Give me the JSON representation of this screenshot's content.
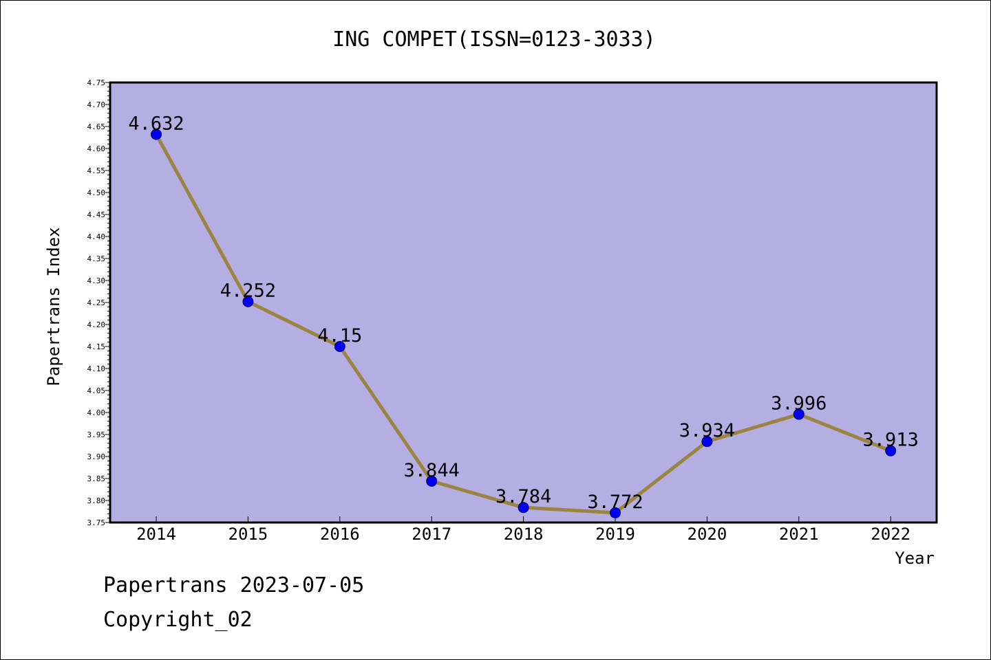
{
  "chart_data": {
    "type": "line",
    "title": "ING COMPET(ISSN=0123-3033)",
    "xlabel": "Year",
    "ylabel": "Papertrans Index",
    "categories": [
      "2014",
      "2015",
      "2016",
      "2017",
      "2018",
      "2019",
      "2020",
      "2021",
      "2022"
    ],
    "series": [
      {
        "values": [
          4.632,
          4.252,
          4.15,
          3.844,
          3.784,
          3.772,
          3.934,
          3.996,
          3.913
        ],
        "data_labels": [
          "4.632",
          "4.252",
          "4.15",
          "3.844",
          "3.784",
          "3.772",
          "3.934",
          "3.996",
          "3.913"
        ]
      }
    ],
    "ylim": [
      3.75,
      4.75
    ],
    "yticks": [
      3.75,
      3.8,
      3.85,
      3.9,
      3.95,
      4.0,
      4.05,
      4.1,
      4.15,
      4.2,
      4.25,
      4.3,
      4.35,
      4.4,
      4.45,
      4.5,
      4.55,
      4.6,
      4.65,
      4.7,
      4.75
    ],
    "ytick_labels": [
      "3.75",
      "3.80",
      "3.85",
      "3.90",
      "3.95",
      "4.00",
      "4.05",
      "4.10",
      "4.15",
      "4.20",
      "4.25",
      "4.30",
      "4.35",
      "4.40",
      "4.45",
      "4.50",
      "4.55",
      "4.60",
      "4.65",
      "4.70",
      "4.75"
    ],
    "grid": false,
    "legend": "none",
    "colors": {
      "plot_background": "#b5aee3",
      "line": "#9a8440",
      "marker": "#0000ee",
      "marker_edge": "#000066"
    }
  },
  "footer": {
    "line1": "Papertrans 2023-07-05",
    "line2": "Copyright_02"
  }
}
